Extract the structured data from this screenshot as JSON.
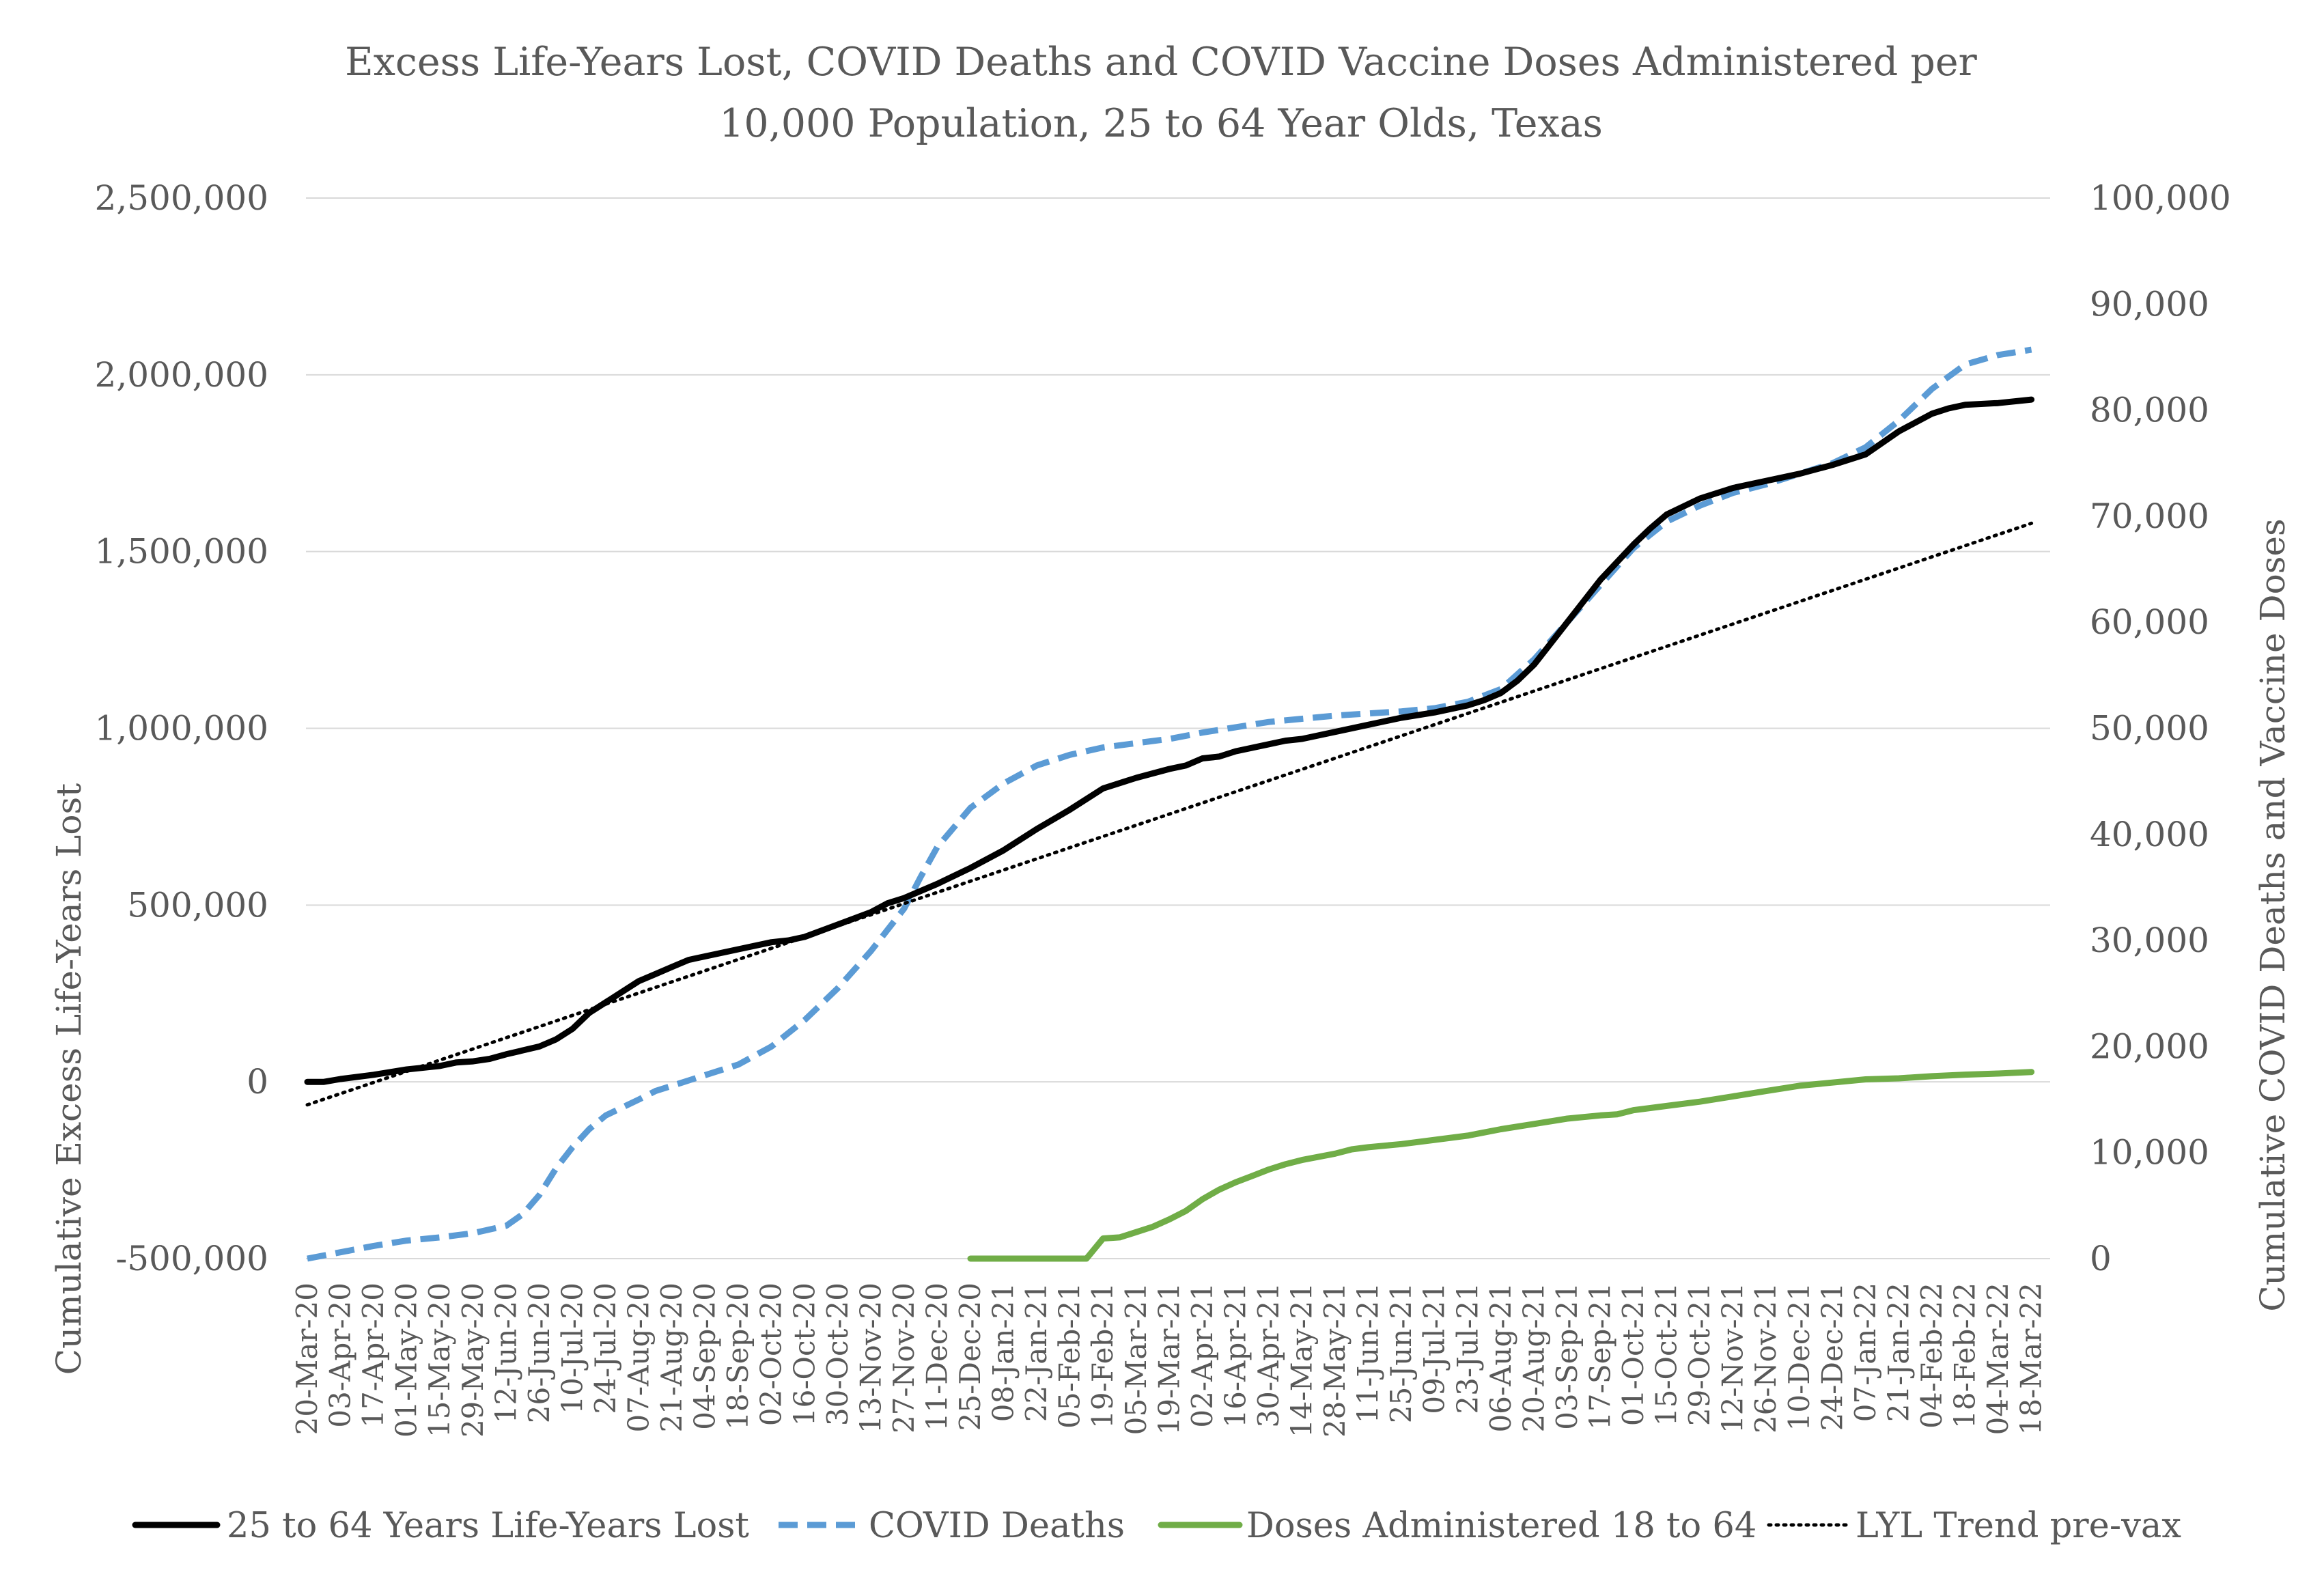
{
  "chart_data": {
    "type": "line",
    "title": "Excess Life-Years Lost, COVID Deaths and COVID Vaccine Doses Administered per 10,000 Population, 25 to 64 Year Olds, Texas",
    "title_lines": [
      "Excess Life-Years Lost, COVID Deaths and COVID Vaccine Doses Administered per",
      "10,000 Population, 25 to 64 Year Olds, Texas"
    ],
    "y_left_label": "Cumulative Excess Life-Years Lost",
    "y_right_label": "Cumulative COVID Deaths and Vaccine Doses",
    "y_left_range": [
      -500000,
      2500000
    ],
    "y_left_ticks": [
      -500000,
      0,
      500000,
      1000000,
      1500000,
      2000000,
      2500000
    ],
    "y_left_tick_labels": [
      "-500,000",
      "0",
      "500,000",
      "1,000,000",
      "1,500,000",
      "2,000,000",
      "2,500,000"
    ],
    "y_right_range": [
      0,
      100000
    ],
    "y_right_ticks": [
      0,
      10000,
      20000,
      30000,
      40000,
      50000,
      60000,
      70000,
      80000,
      90000,
      100000
    ],
    "y_right_tick_labels": [
      "0",
      "10,000",
      "20,000",
      "30,000",
      "40,000",
      "50,000",
      "60,000",
      "70,000",
      "80,000",
      "90,000",
      "100,000"
    ],
    "grid": "horizontal",
    "legend_position": "bottom",
    "x_tick_labels": [
      "20-Mar-20",
      "03-Apr-20",
      "17-Apr-20",
      "01-May-20",
      "15-May-20",
      "29-May-20",
      "12-Jun-20",
      "26-Jun-20",
      "10-Jul-20",
      "24-Jul-20",
      "07-Aug-20",
      "21-Aug-20",
      "04-Sep-20",
      "18-Sep-20",
      "02-Oct-20",
      "16-Oct-20",
      "30-Oct-20",
      "13-Nov-20",
      "27-Nov-20",
      "11-Dec-20",
      "25-Dec-20",
      "08-Jan-21",
      "22-Jan-21",
      "05-Feb-21",
      "19-Feb-21",
      "05-Mar-21",
      "19-Mar-21",
      "02-Apr-21",
      "16-Apr-21",
      "30-Apr-21",
      "14-May-21",
      "28-May-21",
      "11-Jun-21",
      "25-Jun-21",
      "09-Jul-21",
      "23-Jul-21",
      "06-Aug-21",
      "20-Aug-21",
      "03-Sep-21",
      "17-Sep-21",
      "01-Oct-21",
      "15-Oct-21",
      "29-Oct-21",
      "12-Nov-21",
      "26-Nov-21",
      "10-Dec-21",
      "24-Dec-21",
      "07-Jan-22",
      "21-Jan-22",
      "04-Feb-22",
      "18-Feb-22",
      "04-Mar-22",
      "18-Mar-22"
    ],
    "series": [
      {
        "name": "25 to 64 Years Life-Years Lost",
        "axis": "left",
        "color": "#000000",
        "style": "solid",
        "points": [
          [
            0,
            0
          ],
          [
            0.5,
            0
          ],
          [
            1,
            8000
          ],
          [
            2,
            20000
          ],
          [
            3,
            35000
          ],
          [
            4,
            45000
          ],
          [
            4.5,
            55000
          ],
          [
            5,
            58000
          ],
          [
            5.5,
            65000
          ],
          [
            6,
            78000
          ],
          [
            7,
            100000
          ],
          [
            7.5,
            120000
          ],
          [
            8,
            150000
          ],
          [
            8.5,
            195000
          ],
          [
            9,
            225000
          ],
          [
            10,
            285000
          ],
          [
            10.5,
            305000
          ],
          [
            11,
            325000
          ],
          [
            11.5,
            345000
          ],
          [
            12,
            355000
          ],
          [
            13,
            375000
          ],
          [
            14,
            395000
          ],
          [
            14.5,
            400000
          ],
          [
            15,
            410000
          ],
          [
            16,
            445000
          ],
          [
            17,
            480000
          ],
          [
            17.5,
            505000
          ],
          [
            18,
            520000
          ],
          [
            19,
            560000
          ],
          [
            20,
            605000
          ],
          [
            21,
            655000
          ],
          [
            22,
            715000
          ],
          [
            23,
            770000
          ],
          [
            24,
            830000
          ],
          [
            25,
            860000
          ],
          [
            26,
            885000
          ],
          [
            26.5,
            895000
          ],
          [
            27,
            915000
          ],
          [
            27.5,
            920000
          ],
          [
            28,
            935000
          ],
          [
            29,
            955000
          ],
          [
            29.5,
            965000
          ],
          [
            30,
            970000
          ],
          [
            31,
            990000
          ],
          [
            32,
            1010000
          ],
          [
            32.5,
            1020000
          ],
          [
            33,
            1030000
          ],
          [
            34,
            1045000
          ],
          [
            35,
            1065000
          ],
          [
            35.5,
            1080000
          ],
          [
            36,
            1100000
          ],
          [
            36.5,
            1135000
          ],
          [
            37,
            1180000
          ],
          [
            38,
            1300000
          ],
          [
            39,
            1420000
          ],
          [
            40,
            1520000
          ],
          [
            40.5,
            1565000
          ],
          [
            41,
            1605000
          ],
          [
            42,
            1650000
          ],
          [
            43,
            1680000
          ],
          [
            44,
            1700000
          ],
          [
            45,
            1720000
          ],
          [
            46,
            1745000
          ],
          [
            47,
            1775000
          ],
          [
            48,
            1840000
          ],
          [
            49,
            1890000
          ],
          [
            49.5,
            1905000
          ],
          [
            50,
            1915000
          ],
          [
            51,
            1920000
          ],
          [
            52,
            1930000
          ]
        ]
      },
      {
        "name": "COVID Deaths",
        "axis": "right",
        "color": "#5b9bd5",
        "style": "dashed",
        "points": [
          [
            0,
            0
          ],
          [
            1,
            600
          ],
          [
            2,
            1200
          ],
          [
            3,
            1700
          ],
          [
            4,
            2000
          ],
          [
            5,
            2400
          ],
          [
            6,
            3100
          ],
          [
            6.5,
            4200
          ],
          [
            7,
            6000
          ],
          [
            7.5,
            8500
          ],
          [
            8,
            10500
          ],
          [
            8.5,
            12200
          ],
          [
            9,
            13500
          ],
          [
            10,
            15000
          ],
          [
            10.5,
            15800
          ],
          [
            11,
            16300
          ],
          [
            11.5,
            16800
          ],
          [
            12,
            17300
          ],
          [
            13,
            18300
          ],
          [
            14,
            20000
          ],
          [
            15,
            22500
          ],
          [
            16,
            25500
          ],
          [
            17,
            29000
          ],
          [
            18,
            33000
          ],
          [
            18.5,
            36000
          ],
          [
            19,
            38800
          ],
          [
            20,
            42500
          ],
          [
            21,
            44800
          ],
          [
            22,
            46500
          ],
          [
            23,
            47500
          ],
          [
            24,
            48200
          ],
          [
            25,
            48600
          ],
          [
            26,
            49000
          ],
          [
            27,
            49600
          ],
          [
            28,
            50100
          ],
          [
            29,
            50600
          ],
          [
            30,
            50900
          ],
          [
            31,
            51200
          ],
          [
            32,
            51400
          ],
          [
            33,
            51600
          ],
          [
            34,
            51900
          ],
          [
            35,
            52500
          ],
          [
            36,
            53700
          ],
          [
            37,
            56500
          ],
          [
            38,
            60000
          ],
          [
            39,
            63500
          ],
          [
            40,
            67000
          ],
          [
            41,
            69500
          ],
          [
            42,
            71000
          ],
          [
            43,
            72200
          ],
          [
            44,
            73000
          ],
          [
            45,
            74000
          ],
          [
            46,
            75000
          ],
          [
            47,
            76500
          ],
          [
            48,
            79000
          ],
          [
            49,
            82000
          ],
          [
            50,
            84300
          ],
          [
            51,
            85200
          ],
          [
            52,
            85700
          ]
        ]
      },
      {
        "name": "Doses Administered 18 to 64",
        "axis": "right",
        "color": "#70ad47",
        "style": "solid",
        "points": [
          [
            20,
            0
          ],
          [
            21,
            0
          ],
          [
            22,
            0
          ],
          [
            23,
            0
          ],
          [
            23.5,
            0
          ],
          [
            24,
            1900
          ],
          [
            24.5,
            2000
          ],
          [
            25,
            2500
          ],
          [
            25.5,
            3000
          ],
          [
            26,
            3700
          ],
          [
            26.5,
            4500
          ],
          [
            27,
            5600
          ],
          [
            27.5,
            6500
          ],
          [
            28,
            7200
          ],
          [
            28.5,
            7800
          ],
          [
            29,
            8400
          ],
          [
            29.5,
            8900
          ],
          [
            30,
            9300
          ],
          [
            30.5,
            9600
          ],
          [
            31,
            9900
          ],
          [
            31.5,
            10300
          ],
          [
            32,
            10500
          ],
          [
            33,
            10800
          ],
          [
            34,
            11200
          ],
          [
            35,
            11600
          ],
          [
            36,
            12200
          ],
          [
            37,
            12700
          ],
          [
            38,
            13200
          ],
          [
            39,
            13500
          ],
          [
            39.5,
            13600
          ],
          [
            40,
            14000
          ],
          [
            41,
            14400
          ],
          [
            42,
            14800
          ],
          [
            43,
            15300
          ],
          [
            44,
            15800
          ],
          [
            45,
            16300
          ],
          [
            46,
            16600
          ],
          [
            47,
            16900
          ],
          [
            48,
            17000
          ],
          [
            49,
            17200
          ],
          [
            50,
            17350
          ],
          [
            51,
            17450
          ],
          [
            52,
            17600
          ]
        ]
      },
      {
        "name": "LYL Trend pre-vax",
        "axis": "left",
        "color": "#000000",
        "style": "dotted",
        "points": [
          [
            0,
            -65000
          ],
          [
            52,
            1580000
          ]
        ]
      }
    ]
  }
}
